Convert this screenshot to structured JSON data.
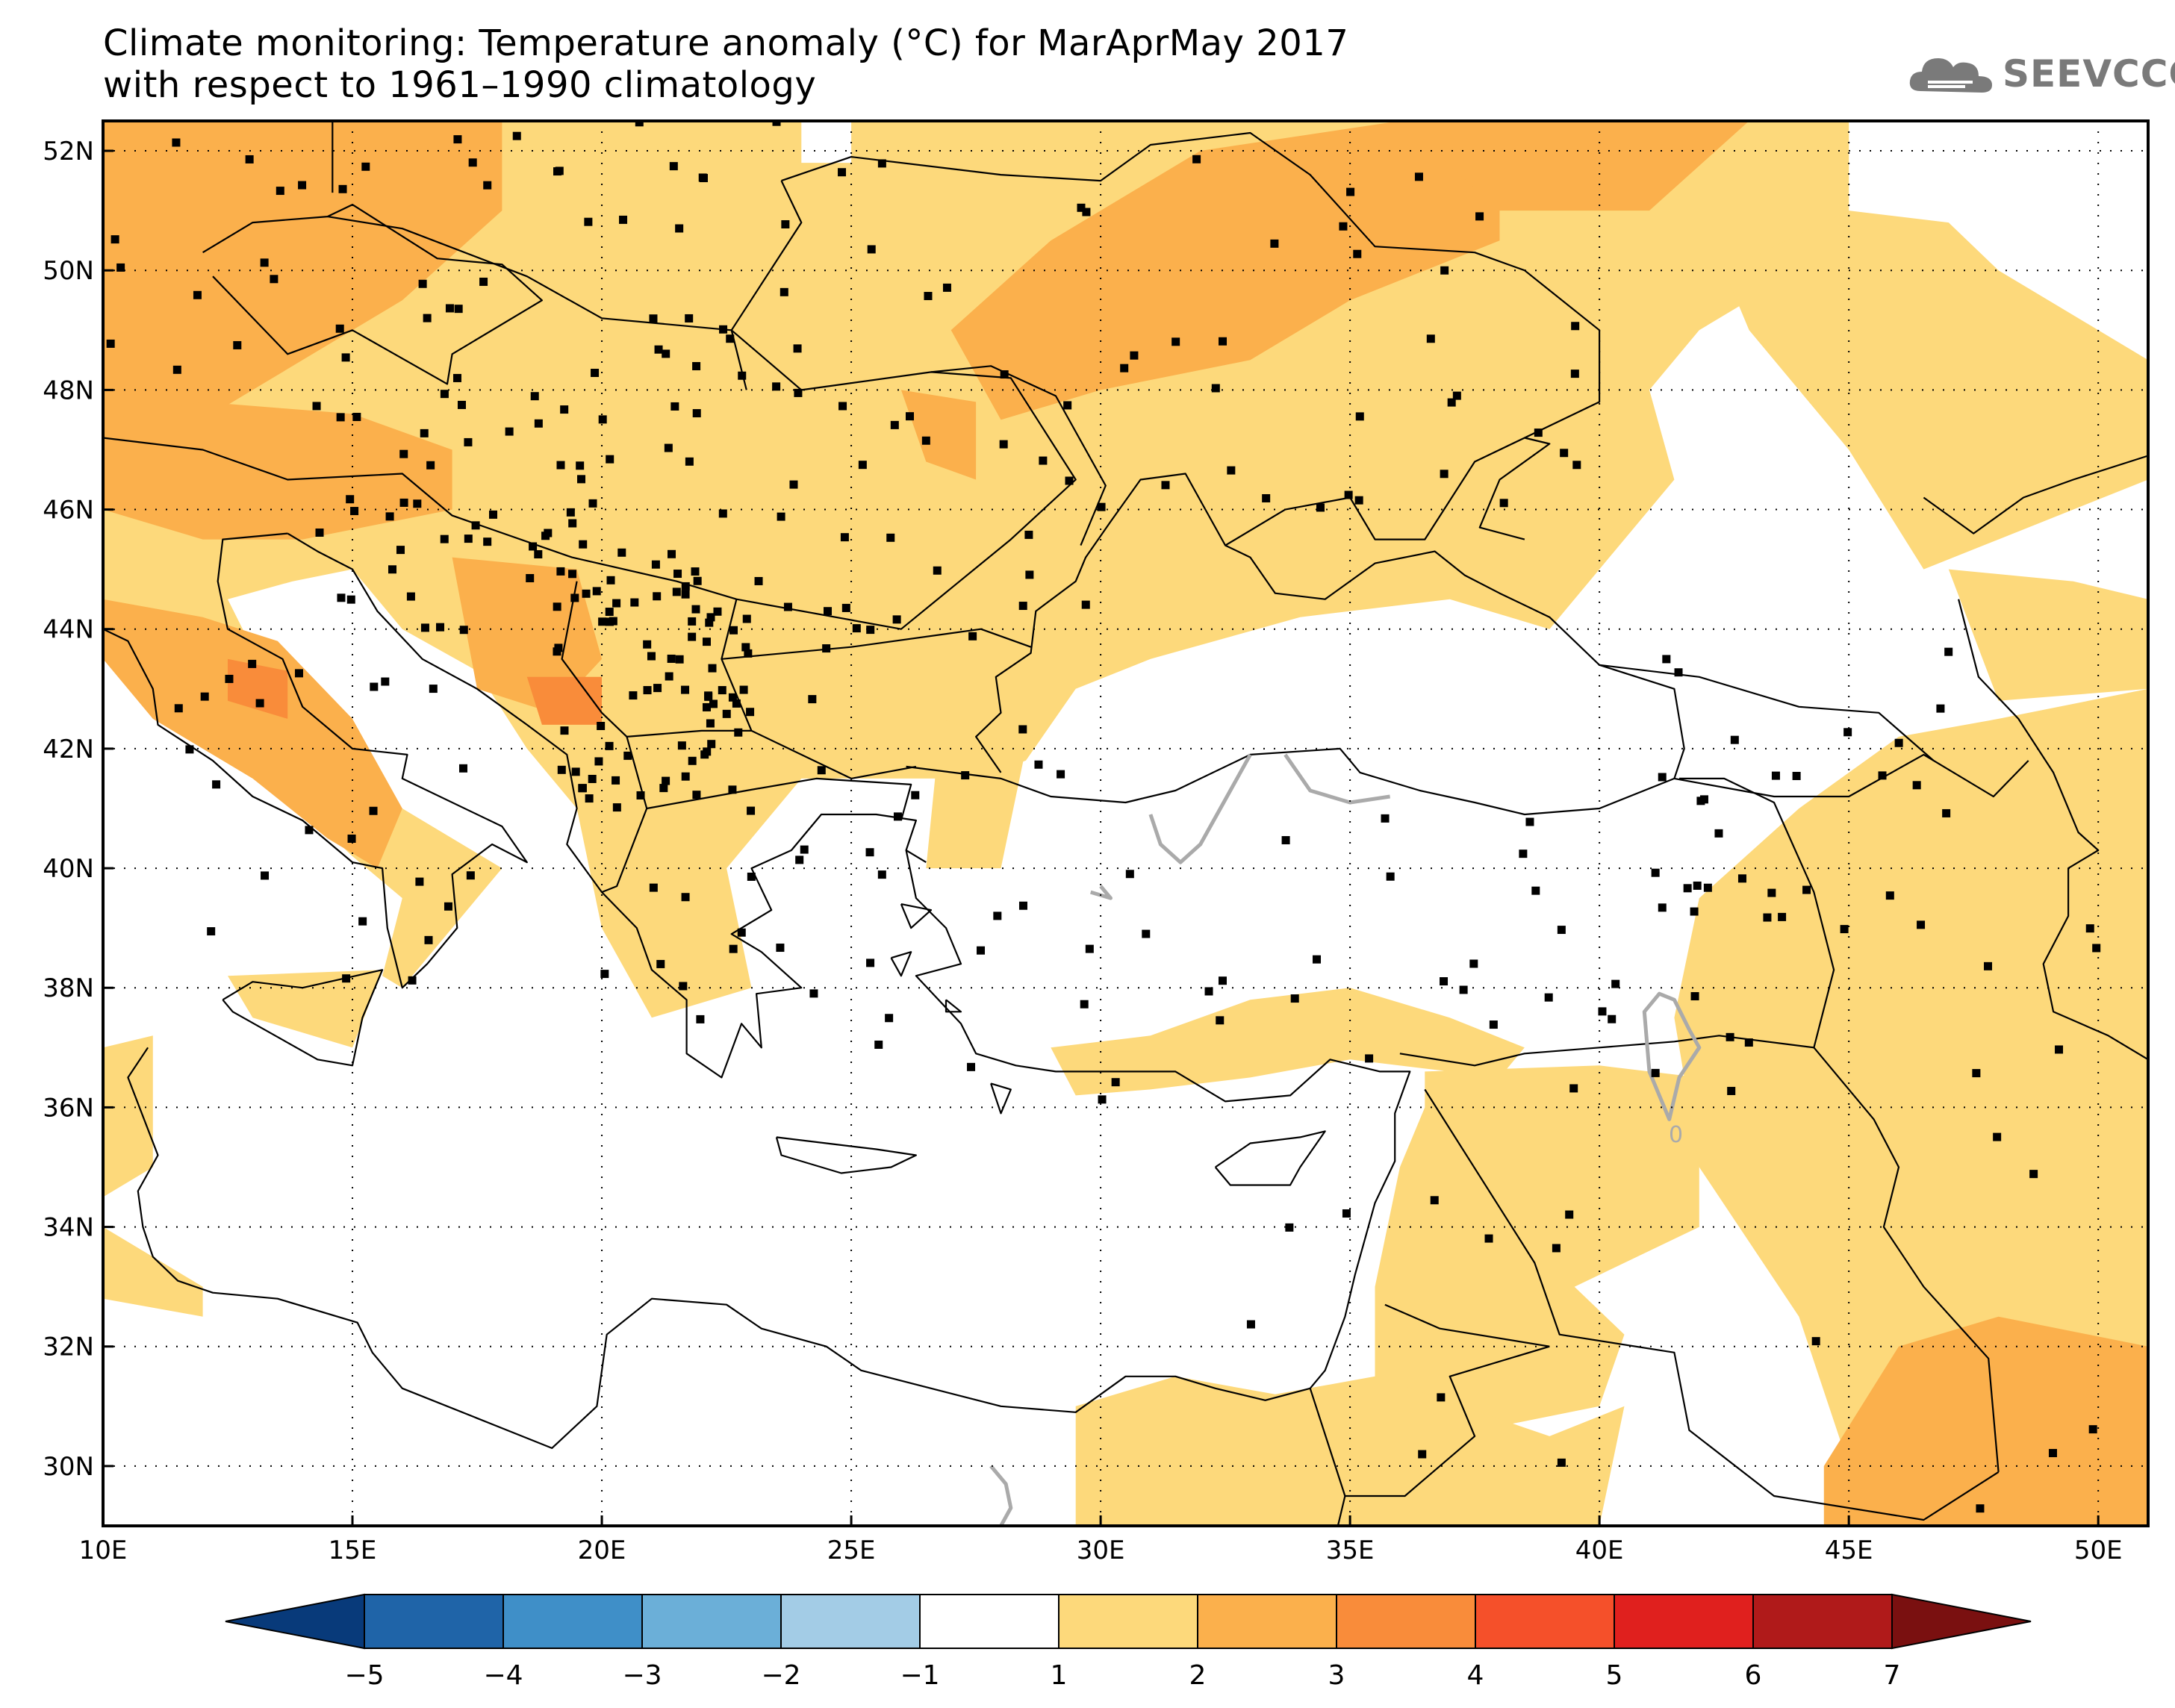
{
  "title": {
    "line1": "Climate monitoring: Temperature anomaly (°C) for MarAprMay 2017",
    "line2": "with respect to 1961–1990 climatology"
  },
  "logo": {
    "text": "SEEVCCC",
    "icon": "cloud-icon",
    "color": "#7a7a7a"
  },
  "map": {
    "lon_range": [
      10,
      51
    ],
    "lat_range": [
      29,
      52.5
    ],
    "lon_ticks": [
      {
        "value": 10,
        "label": "10E"
      },
      {
        "value": 15,
        "label": "15E"
      },
      {
        "value": 20,
        "label": "20E"
      },
      {
        "value": 25,
        "label": "25E"
      },
      {
        "value": 30,
        "label": "30E"
      },
      {
        "value": 35,
        "label": "35E"
      },
      {
        "value": 40,
        "label": "40E"
      },
      {
        "value": 45,
        "label": "45E"
      },
      {
        "value": 50,
        "label": "50E"
      }
    ],
    "lat_ticks": [
      {
        "value": 30,
        "label": "30N"
      },
      {
        "value": 32,
        "label": "32N"
      },
      {
        "value": 34,
        "label": "34N"
      },
      {
        "value": 36,
        "label": "36N"
      },
      {
        "value": 38,
        "label": "38N"
      },
      {
        "value": 40,
        "label": "40N"
      },
      {
        "value": 42,
        "label": "42N"
      },
      {
        "value": 44,
        "label": "44N"
      },
      {
        "value": 46,
        "label": "46N"
      },
      {
        "value": 48,
        "label": "48N"
      },
      {
        "value": 50,
        "label": "50N"
      },
      {
        "value": 52,
        "label": "52N"
      }
    ],
    "contour_zero_label": "0",
    "colors": {
      "anom_1_2": "#fdd97b",
      "anom_2_3": "#fbb04c",
      "anom_3_4": "#f98c3a",
      "coast": "#000000",
      "contour": "#aaaaaa",
      "station": "#000000"
    }
  },
  "chart_data": {
    "type": "heatmap",
    "variable": "Temperature anomaly (°C)",
    "colorbar": {
      "boundaries": [
        -5,
        -4,
        -3,
        -2,
        -1,
        1,
        2,
        3,
        4,
        5,
        6,
        7
      ],
      "colors": [
        "#083a7a",
        "#1f64a8",
        "#3f8fc8",
        "#6bafd8",
        "#a3cce6",
        "#ffffff",
        "#fdd97b",
        "#fbb04c",
        "#f98c3a",
        "#f5502a",
        "#e0201e",
        "#b01a1a",
        "#7a1010"
      ],
      "labels": [
        "−5",
        "−4",
        "−3",
        "−2",
        "−1",
        "1",
        "2",
        "3",
        "4",
        "5",
        "6",
        "7"
      ]
    },
    "regions": [
      {
        "name": "central-europe",
        "level": "2-3",
        "poly": [
          [
            10,
            52.5
          ],
          [
            18,
            52.5
          ],
          [
            18,
            51
          ],
          [
            16,
            49.5
          ],
          [
            14,
            48.5
          ],
          [
            12,
            47.5
          ],
          [
            10,
            47
          ]
        ]
      },
      {
        "name": "alps",
        "level": "2-3",
        "poly": [
          [
            10,
            47.5
          ],
          [
            12,
            47.8
          ],
          [
            15,
            47.6
          ],
          [
            17,
            47
          ],
          [
            17,
            46
          ],
          [
            14,
            45.5
          ],
          [
            12,
            45.5
          ],
          [
            10,
            46
          ]
        ]
      },
      {
        "name": "italy",
        "level": "2-3",
        "poly": [
          [
            10,
            44.5
          ],
          [
            12,
            44.2
          ],
          [
            13.5,
            43.8
          ],
          [
            15,
            42.5
          ],
          [
            16,
            41
          ],
          [
            15.5,
            40
          ],
          [
            14.5,
            40.5
          ],
          [
            13,
            41.5
          ],
          [
            11,
            42.5
          ],
          [
            10,
            43.5
          ]
        ]
      },
      {
        "name": "ukraine",
        "level": "2-3",
        "poly": [
          [
            27,
            49
          ],
          [
            29,
            50.5
          ],
          [
            32,
            52
          ],
          [
            36,
            52.5
          ],
          [
            38,
            52
          ],
          [
            38,
            50.5
          ],
          [
            35,
            49.5
          ],
          [
            33,
            48.5
          ],
          [
            30,
            48
          ],
          [
            28,
            47.5
          ]
        ]
      },
      {
        "name": "romania",
        "level": "2-3",
        "poly": [
          [
            26,
            48
          ],
          [
            27.5,
            47.8
          ],
          [
            27.5,
            46.5
          ],
          [
            26.5,
            46.8
          ]
        ]
      },
      {
        "name": "bosnia",
        "level": "2-3",
        "poly": [
          [
            17,
            45.2
          ],
          [
            19.5,
            45
          ],
          [
            20,
            43.5
          ],
          [
            19,
            42.6
          ],
          [
            17.5,
            43
          ]
        ]
      },
      {
        "name": "montenegro",
        "level": "3-4",
        "poly": [
          [
            18.5,
            43.2
          ],
          [
            20,
            43.2
          ],
          [
            20,
            42.4
          ],
          [
            18.8,
            42.4
          ]
        ]
      },
      {
        "name": "central-italy",
        "level": "3-4",
        "poly": [
          [
            12.5,
            43.5
          ],
          [
            13.7,
            43.3
          ],
          [
            13.7,
            42.5
          ],
          [
            12.5,
            42.8
          ]
        ]
      },
      {
        "name": "russia-north",
        "level": "2-3",
        "poly": [
          [
            36,
            52.5
          ],
          [
            43,
            52.5
          ],
          [
            41,
            51
          ],
          [
            38,
            51
          ]
        ]
      },
      {
        "name": "iran-southwest",
        "level": "2-3",
        "poly": [
          [
            44.5,
            30
          ],
          [
            46,
            32
          ],
          [
            48,
            32.5
          ],
          [
            51,
            32
          ],
          [
            51,
            29
          ],
          [
            44.5,
            29
          ]
        ]
      }
    ],
    "stations_count": 400
  },
  "colorbar_labels": {
    "m5": "−5",
    "m4": "−4",
    "m3": "−3",
    "m2": "−2",
    "m1": "−1",
    "p1": "1",
    "p2": "2",
    "p3": "3",
    "p4": "4",
    "p5": "5",
    "p6": "6",
    "p7": "7"
  }
}
